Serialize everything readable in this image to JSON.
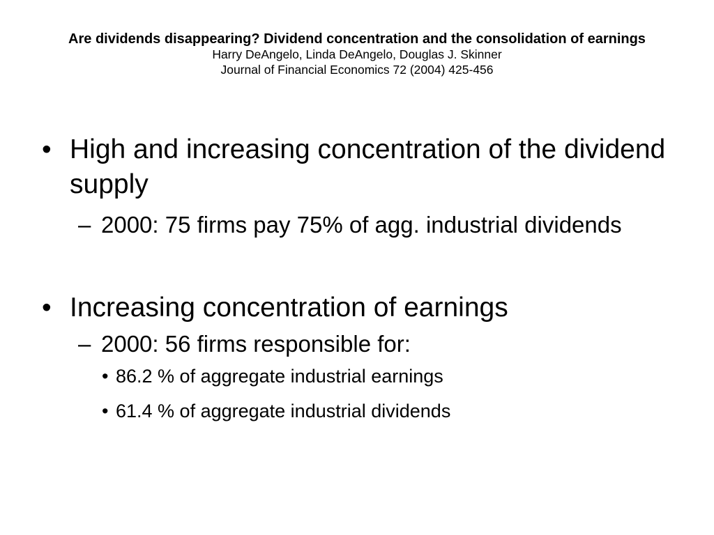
{
  "header": {
    "title": "Are dividends disappearing? Dividend concentration and the consolidation of earnings",
    "authors": "Harry DeAngelo, Linda DeAngelo, Douglas J. Skinner",
    "journal": "Journal of Financial Economics 72 (2004) 425-456"
  },
  "body": {
    "point1": {
      "text": "High and increasing concentration of the dividend supply",
      "sub1": "2000:  75 firms pay 75% of agg. industrial dividends"
    },
    "point2": {
      "text": "Increasing concentration of earnings",
      "sub1": "2000:  56 firms responsible for:",
      "items": [
        "86.2 % of aggregate industrial earnings",
        "61.4 % of aggregate industrial dividends"
      ]
    }
  }
}
